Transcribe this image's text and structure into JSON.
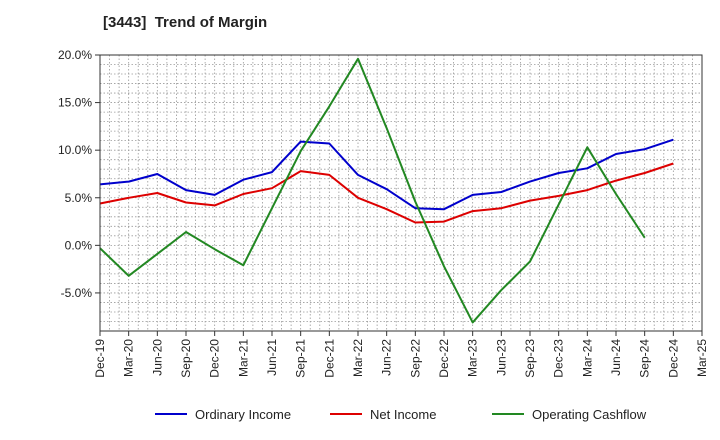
{
  "chart_data": {
    "type": "line",
    "title": "[3443]  Trend of Margin",
    "xlabel": "",
    "ylabel": "",
    "categories": [
      "Dec-19",
      "Mar-20",
      "Jun-20",
      "Sep-20",
      "Dec-20",
      "Mar-21",
      "Jun-21",
      "Sep-21",
      "Dec-21",
      "Mar-22",
      "Jun-22",
      "Sep-22",
      "Dec-22",
      "Mar-23",
      "Jun-23",
      "Sep-23",
      "Dec-23",
      "Mar-24",
      "Jun-24",
      "Sep-24",
      "Dec-24",
      "Mar-25"
    ],
    "ylim": [
      -9,
      20
    ],
    "yticks": [
      -5,
      0,
      5,
      10,
      15,
      20
    ],
    "ytick_labels": [
      "-5.0%",
      "0.0%",
      "5.0%",
      "10.0%",
      "15.0%",
      "20.0%"
    ],
    "grid": true,
    "legend_position": "bottom",
    "series": [
      {
        "name": "Ordinary Income",
        "color": "#0000cc",
        "values": [
          6.4,
          6.7,
          7.5,
          5.8,
          5.3,
          6.9,
          7.7,
          10.9,
          10.7,
          7.4,
          5.9,
          3.9,
          3.8,
          5.3,
          5.6,
          6.7,
          7.6,
          8.1,
          9.6,
          10.1,
          11.1,
          null
        ]
      },
      {
        "name": "Net Income",
        "color": "#dd0000",
        "values": [
          4.4,
          5.0,
          5.5,
          4.5,
          4.2,
          5.4,
          6.0,
          7.8,
          7.4,
          5.0,
          3.8,
          2.4,
          2.5,
          3.6,
          3.9,
          4.7,
          5.2,
          5.8,
          6.8,
          7.6,
          8.6,
          null
        ]
      },
      {
        "name": "Operating Cashflow",
        "color": "#228822",
        "values": [
          -0.3,
          -3.2,
          -0.9,
          1.4,
          -0.4,
          -2.1,
          3.9,
          9.9,
          14.6,
          19.6,
          12.3,
          4.6,
          -2.2,
          -8.1,
          -4.7,
          -1.7,
          4.3,
          10.3,
          5.4,
          0.8,
          null,
          null
        ]
      }
    ]
  }
}
